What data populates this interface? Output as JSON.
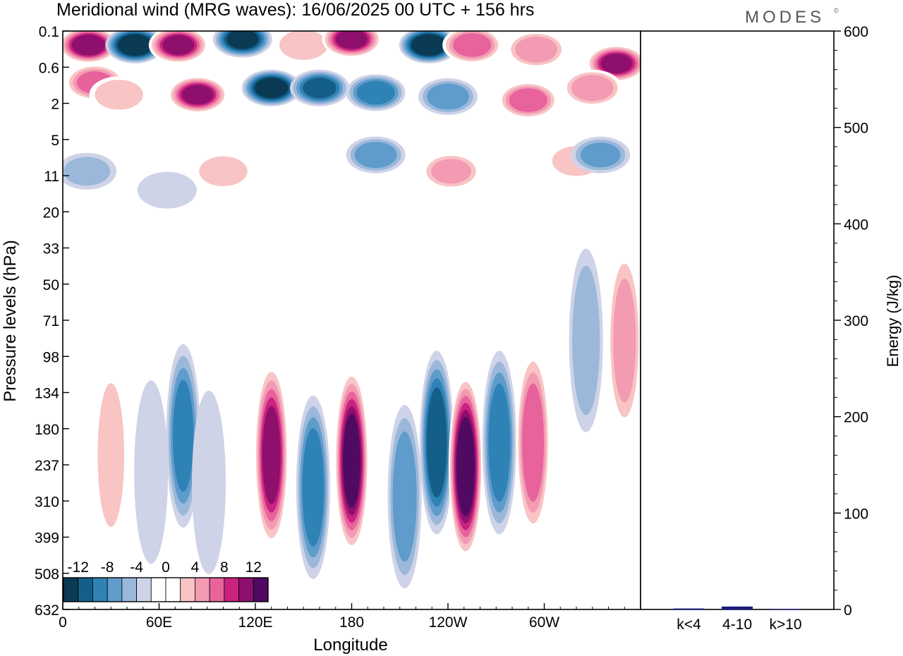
{
  "header": {
    "title": "Meridional wind (MRG waves):  16/06/2025  00 UTC  + 156 hrs",
    "brand": "MODES",
    "brand_mark": "©"
  },
  "chart_data": [
    {
      "type": "heatmap",
      "title": "Meridional wind (MRG waves):  16/06/2025  00 UTC  + 156 hrs",
      "xlabel": "Longitude",
      "ylabel": "Pressure levels (hPa)",
      "x_ticks": [
        "0",
        "60E",
        "120E",
        "180",
        "120W",
        "60W"
      ],
      "y_ticks": [
        "0.1",
        "0.6",
        "2",
        "5",
        "11",
        "20",
        "33",
        "50",
        "71",
        "98",
        "134",
        "180",
        "237",
        "310",
        "399",
        "508",
        "632"
      ],
      "colorbar": {
        "labels": [
          "-12",
          "-8",
          "-4",
          "0",
          "4",
          "8",
          "12"
        ],
        "levels": [
          -14,
          -12,
          -10,
          -8,
          -6,
          -4,
          -2,
          2,
          4,
          6,
          8,
          10,
          12,
          14
        ],
        "colors": [
          "#0b3a55",
          "#135f8a",
          "#2f82b6",
          "#5f9ccb",
          "#9bb8da",
          "#cfd3e7",
          "#ffffff",
          "#ffffff",
          "#f9c4c4",
          "#f29bb3",
          "#e8629c",
          "#c8237f",
          "#8e0f6c",
          "#500a61"
        ]
      },
      "blobs": [
        {
          "x": 16,
          "y": 0.2,
          "value": 13
        },
        {
          "x": 45,
          "y": 0.2,
          "value": -14
        },
        {
          "x": 72,
          "y": 0.2,
          "value": 12
        },
        {
          "x": 112,
          "y": 0.15,
          "value": -12
        },
        {
          "x": 150,
          "y": 0.2,
          "value": 5
        },
        {
          "x": 180,
          "y": 0.15,
          "value": 12
        },
        {
          "x": 228,
          "y": 0.2,
          "value": -14
        },
        {
          "x": 255,
          "y": 0.2,
          "value": 9
        },
        {
          "x": 295,
          "y": 0.25,
          "value": 7
        },
        {
          "x": 345,
          "y": 0.5,
          "value": 12
        },
        {
          "x": 20,
          "y": 1.0,
          "value": 8
        },
        {
          "x": 35,
          "y": 1.5,
          "value": 5
        },
        {
          "x": 84,
          "y": 1.5,
          "value": 12
        },
        {
          "x": 130,
          "y": 1.2,
          "value": -13
        },
        {
          "x": 160,
          "y": 1.2,
          "value": -10
        },
        {
          "x": 195,
          "y": 1.4,
          "value": -9
        },
        {
          "x": 240,
          "y": 1.6,
          "value": -7
        },
        {
          "x": 290,
          "y": 1.8,
          "value": 9
        },
        {
          "x": 330,
          "y": 1.2,
          "value": 7
        },
        {
          "x": 195,
          "y": 7,
          "value": -7
        },
        {
          "x": 242,
          "y": 10,
          "value": 6
        },
        {
          "x": 320,
          "y": 8,
          "value": 5
        },
        {
          "x": 100,
          "y": 10,
          "value": 5
        },
        {
          "x": 15,
          "y": 10,
          "value": -4
        },
        {
          "x": 65,
          "y": 14,
          "value": -3
        },
        {
          "x": 335,
          "y": 7,
          "value": -6
        },
        {
          "x": 30,
          "y": 220,
          "value": 4
        },
        {
          "x": 55,
          "y": 250,
          "value": -3
        },
        {
          "x": 75,
          "y": 190,
          "value": -8
        },
        {
          "x": 91,
          "y": 270,
          "value": -3
        },
        {
          "x": 130,
          "y": 220,
          "value": 12
        },
        {
          "x": 156,
          "y": 280,
          "value": -9
        },
        {
          "x": 180,
          "y": 230,
          "value": 14
        },
        {
          "x": 213,
          "y": 300,
          "value": -7
        },
        {
          "x": 233,
          "y": 200,
          "value": -11
        },
        {
          "x": 251,
          "y": 240,
          "value": 15
        },
        {
          "x": 272,
          "y": 200,
          "value": -9
        },
        {
          "x": 293,
          "y": 200,
          "value": 9
        },
        {
          "x": 350,
          "y": 85,
          "value": 6
        },
        {
          "x": 326,
          "y": 85,
          "value": -5
        }
      ]
    },
    {
      "type": "bar",
      "categories": [
        "k<4",
        "4-10",
        "k>10"
      ],
      "values": [
        1,
        3,
        0
      ],
      "ylabel": "Energy (J/kg)",
      "ylim": [
        0,
        600
      ],
      "y_ticks": [
        "0",
        "100",
        "200",
        "300",
        "400",
        "500",
        "600"
      ],
      "bar_color": "#1c1a7a"
    }
  ]
}
